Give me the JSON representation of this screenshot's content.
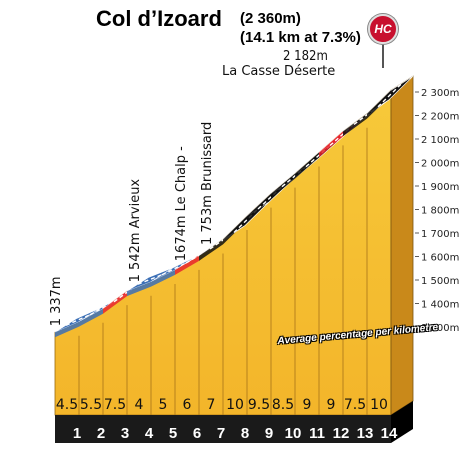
{
  "title": {
    "climb_name": "Col d’Izoard",
    "summit_altitude": "(2 360m)",
    "length_grade": "(14.1 km at 7.3%)"
  },
  "category_badge": "HC",
  "summit_annotation": {
    "altitude": "2 182m",
    "place": "La Casse Déserte"
  },
  "avg_label": "Average percentage per kilometre",
  "chart_data": {
    "type": "area",
    "x_unit": "km",
    "km_markers": [
      "1",
      "2",
      "3",
      "4",
      "5",
      "6",
      "7",
      "8",
      "9",
      "10",
      "11",
      "12",
      "13",
      "14"
    ],
    "gradients_percent": [
      4.5,
      5.5,
      7.5,
      4,
      5,
      6,
      7,
      10,
      9.5,
      8.5,
      9,
      9,
      7.5,
      10
    ],
    "gradient_labels": [
      "4.5",
      "5.5",
      "7.5",
      "4",
      "5",
      "6",
      "7",
      "10",
      "9.5",
      "8.5",
      "9",
      "9",
      "7.5",
      "10"
    ],
    "band_colors": [
      "#3b6fb6",
      "#3b6fb6",
      "#e8262d",
      "#3b6fb6",
      "#3b6fb6",
      "#e8262d",
      "#111111",
      "#111111",
      "#111111",
      "#111111",
      "#111111",
      "#e8262d",
      "#111111",
      "#111111"
    ],
    "start_altitude": 1337,
    "y_ticks": [
      1300,
      1400,
      1500,
      1600,
      1700,
      1800,
      1900,
      2000,
      2100,
      2200,
      2300
    ],
    "y_tick_labels": [
      "1 300m",
      "1 400m",
      "1 500m",
      "1 600m",
      "1 700m",
      "1 800m",
      "1 900m",
      "2 000m",
      "2 100m",
      "2 200m",
      "2 300m"
    ],
    "waypoints": [
      {
        "label": "1 337m",
        "km": 0
      },
      {
        "label": "1 542m Arvieux",
        "km": 3.3
      },
      {
        "label": "1674m Le Chalp -",
        "km": 5.2
      },
      {
        "label": "1 753m Brunissard",
        "km": 6.3
      }
    ],
    "colors": {
      "fill": "#f5c430",
      "fill_dark": "#d99a1e",
      "side": "#c9891a",
      "base": "#1a1a1a"
    }
  }
}
